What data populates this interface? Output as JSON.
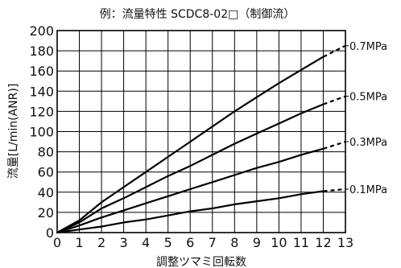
{
  "chart_data": {
    "type": "line",
    "title": "例：流量特性 SCDC8-02□（制御流）",
    "xlabel": "調整ツマミ回転数",
    "ylabel": "流量[L/min(ANR)]",
    "xlim": [
      0,
      13
    ],
    "ylim": [
      0,
      200
    ],
    "x_ticks": [
      "0",
      "1",
      "2",
      "3",
      "4",
      "5",
      "6",
      "7",
      "8",
      "9",
      "10",
      "11",
      "12",
      "13"
    ],
    "y_ticks": [
      "0",
      "20",
      "40",
      "60",
      "80",
      "100",
      "120",
      "140",
      "160",
      "180",
      "200"
    ],
    "grid": true,
    "series": [
      {
        "name": "0.7MPa",
        "solid": [
          [
            0,
            0
          ],
          [
            1,
            12
          ],
          [
            2,
            30
          ],
          [
            3,
            45
          ],
          [
            4,
            60
          ],
          [
            5,
            75
          ],
          [
            6,
            90
          ],
          [
            7,
            105
          ],
          [
            8,
            120
          ],
          [
            9,
            134
          ],
          [
            10,
            148
          ],
          [
            11,
            161
          ],
          [
            12,
            174
          ]
        ],
        "dashed": [
          [
            12,
            174
          ],
          [
            13,
            185
          ]
        ]
      },
      {
        "name": "0.5MPa",
        "solid": [
          [
            0,
            0
          ],
          [
            1,
            10
          ],
          [
            2,
            24
          ],
          [
            3,
            34
          ],
          [
            4,
            45
          ],
          [
            5,
            56
          ],
          [
            6,
            66
          ],
          [
            7,
            77
          ],
          [
            8,
            88
          ],
          [
            9,
            98
          ],
          [
            10,
            108
          ],
          [
            11,
            118
          ],
          [
            12,
            127
          ]
        ],
        "dashed": [
          [
            12,
            127
          ],
          [
            13,
            135
          ]
        ]
      },
      {
        "name": "0.3MPa",
        "solid": [
          [
            0,
            0
          ],
          [
            1,
            7
          ],
          [
            2,
            15
          ],
          [
            3,
            22
          ],
          [
            4,
            29
          ],
          [
            5,
            36
          ],
          [
            6,
            43
          ],
          [
            7,
            50
          ],
          [
            8,
            57
          ],
          [
            9,
            64
          ],
          [
            10,
            70
          ],
          [
            11,
            77
          ],
          [
            12,
            83
          ]
        ],
        "dashed": [
          [
            12,
            83
          ],
          [
            13,
            90
          ]
        ]
      },
      {
        "name": "0.1MPa",
        "solid": [
          [
            0,
            0
          ],
          [
            1,
            3
          ],
          [
            2,
            6
          ],
          [
            3,
            10
          ],
          [
            4,
            13
          ],
          [
            5,
            17
          ],
          [
            6,
            21
          ],
          [
            7,
            24
          ],
          [
            8,
            28
          ],
          [
            9,
            31
          ],
          [
            10,
            34
          ],
          [
            11,
            38
          ],
          [
            12,
            41
          ]
        ],
        "dashed": [
          [
            12,
            41
          ],
          [
            13,
            43
          ]
        ]
      }
    ]
  }
}
